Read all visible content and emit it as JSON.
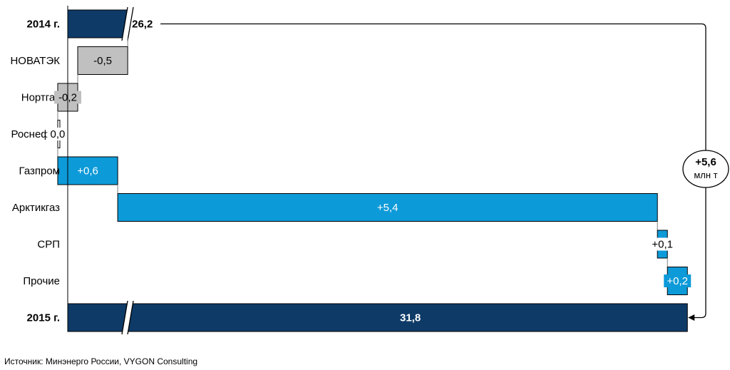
{
  "chart_data": {
    "type": "bar",
    "subtype": "waterfall-horizontal",
    "categories": [
      "2014 г.",
      "НОВАТЭК",
      "Нортгаз",
      "Роснефть",
      "Газпром",
      "Арктикгаз",
      "СРП",
      "Прочие",
      "2015 г."
    ],
    "kinds": [
      "total",
      "delta",
      "delta",
      "delta",
      "delta",
      "delta",
      "delta",
      "delta",
      "total"
    ],
    "values": [
      26.2,
      -0.5,
      -0.2,
      0.0,
      0.6,
      5.4,
      0.1,
      0.2,
      31.8
    ],
    "value_labels": [
      "26,2",
      "-0,5",
      "-0,2",
      "0,0",
      "+0,6",
      "+5,4",
      "+0,1",
      "+0,2",
      "31,8"
    ],
    "axis_break": true,
    "xlim": [
      25.6,
      31.8
    ],
    "grid": false,
    "colors": {
      "total": "#0e3a67",
      "increase": "#0d9ad8",
      "decrease": "#c0c0c0",
      "connector": "#808080"
    },
    "annotation": {
      "line1": "+5,6",
      "line2": "млн т"
    }
  },
  "source": "Источник: Минэнерго России, VYGON Consulting"
}
